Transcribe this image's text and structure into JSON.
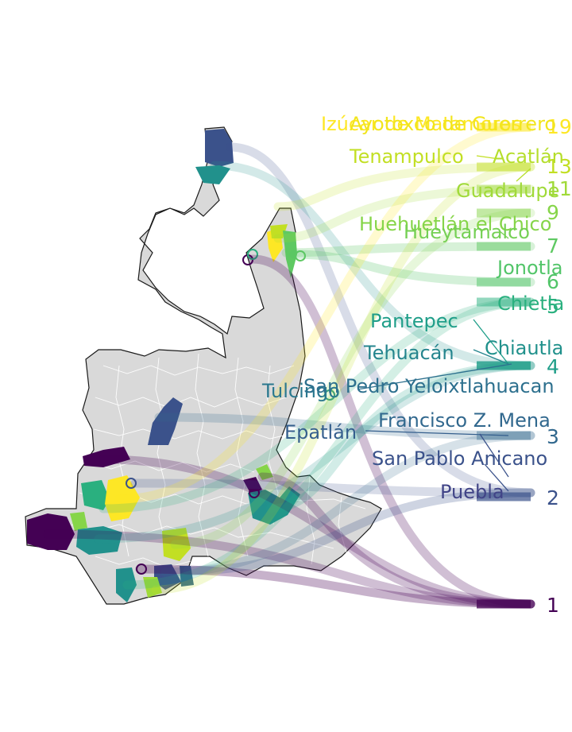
{
  "map": {
    "ranks": [
      {
        "value": "19",
        "color": "#fde725"
      },
      {
        "value": "13",
        "color": "#c2df23"
      },
      {
        "value": "11",
        "color": "#a0da39"
      },
      {
        "value": "9",
        "color": "#86d549"
      },
      {
        "value": "7",
        "color": "#5ec962"
      },
      {
        "value": "6",
        "color": "#52c569"
      },
      {
        "value": "5",
        "color": "#2ab07f"
      },
      {
        "value": "4",
        "color": "#1f9e89"
      },
      {
        "value": "3",
        "color": "#31688e"
      },
      {
        "value": "2",
        "color": "#3b528b"
      },
      {
        "value": "1",
        "color": "#440154"
      }
    ],
    "labels": [
      {
        "text": "Izúcar de Matamoros",
        "color": "#fde725"
      },
      {
        "text": "Ayotoxco de Guerrero",
        "color": "#f2e51d"
      },
      {
        "text": "Tenampulco",
        "color": "#c2df23"
      },
      {
        "text": "Acatlán",
        "color": "#b5de2b"
      },
      {
        "text": "Guadalupe",
        "color": "#a0da39"
      },
      {
        "text": "Huehuetlán el Chico",
        "color": "#86d549"
      },
      {
        "text": "Hueytamalco",
        "color": "#75d054"
      },
      {
        "text": "Jonotla",
        "color": "#52c569"
      },
      {
        "text": "Chietla",
        "color": "#2ab07f"
      },
      {
        "text": "Pantepec",
        "color": "#1f9e89"
      },
      {
        "text": "Chiautla",
        "color": "#21918c"
      },
      {
        "text": "Tehuacán",
        "color": "#25858e"
      },
      {
        "text": "Tulcingo",
        "color": "#2a788e"
      },
      {
        "text": "San Pedro Yeloixtlahuacan",
        "color": "#2d708e"
      },
      {
        "text": "Francisco Z. Mena",
        "color": "#31688e"
      },
      {
        "text": "Epatlán",
        "color": "#355f8d"
      },
      {
        "text": "San Pablo Anicano",
        "color": "#3b528b"
      },
      {
        "text": "Puebla",
        "color": "#414487"
      }
    ]
  }
}
